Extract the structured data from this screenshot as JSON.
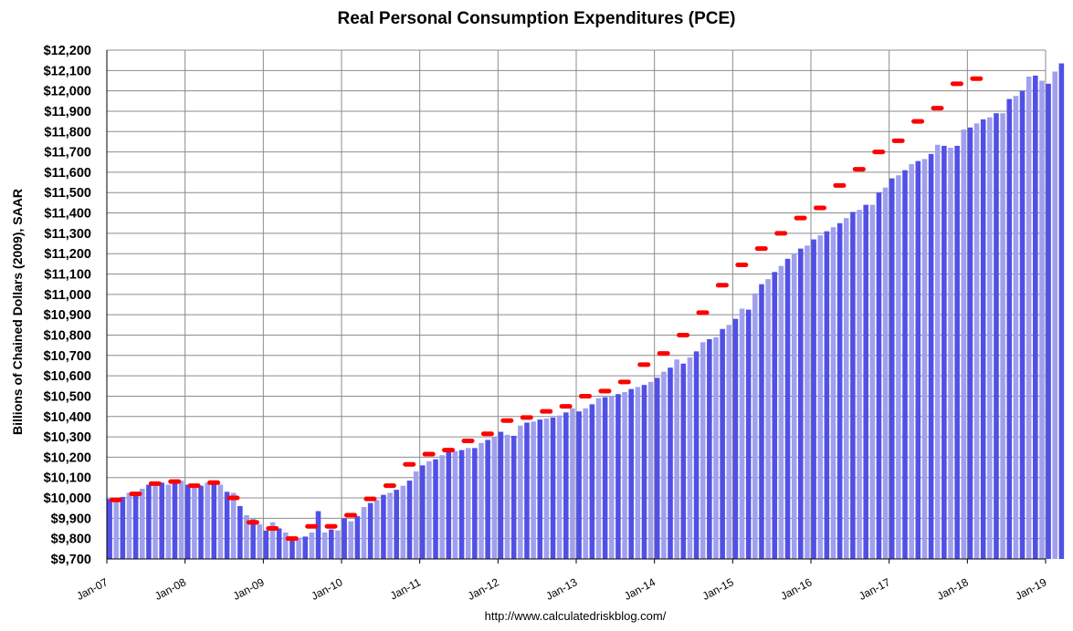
{
  "chart_data": {
    "type": "bar",
    "title": "Real Personal Consumption Expenditures (PCE)",
    "ylabel": "Billions of Chained Dollars (2009), SAAR",
    "xlabel": "",
    "source": "http://www.calculatedriskblog.com/",
    "ylim": [
      9700,
      12200
    ],
    "y_step": 100,
    "x_tick_labels": [
      "Jan-07",
      "Jan-08",
      "Jan-09",
      "Jan-10",
      "Jan-11",
      "Jan-12",
      "Jan-13",
      "Jan-14",
      "Jan-15",
      "Jan-16",
      "Jan-17",
      "Jan-18",
      "Jan-19"
    ],
    "x_start": "Jan-07",
    "x_end": "Jan-19",
    "grid": true,
    "colors": {
      "bar_even": "#5050e6",
      "bar_odd": "#a0a0ee",
      "quarterly_marker": "#ff0000",
      "grid": "#8c8c8c"
    },
    "series": [
      {
        "type": "bar",
        "frequency": "monthly",
        "values": [
          9995,
          9985,
          10005,
          10025,
          10020,
          10045,
          10065,
          10070,
          10075,
          10065,
          10080,
          10085,
          10065,
          10050,
          10060,
          10075,
          10080,
          10065,
          10030,
          10025,
          9960,
          9915,
          9895,
          9870,
          9840,
          9880,
          9850,
          9830,
          9810,
          9805,
          9810,
          9830,
          9935,
          9830,
          9845,
          9840,
          9900,
          9885,
          9910,
          9955,
          9975,
          9990,
          10015,
          10025,
          10040,
          10060,
          10085,
          10130,
          10160,
          10180,
          10190,
          10210,
          10225,
          10230,
          10235,
          10245,
          10245,
          10270,
          10285,
          10300,
          10325,
          10310,
          10305,
          10355,
          10370,
          10375,
          10385,
          10390,
          10395,
          10405,
          10420,
          10440,
          10425,
          10440,
          10460,
          10490,
          10495,
          10500,
          10510,
          10520,
          10535,
          10545,
          10555,
          10570,
          10590,
          10620,
          10640,
          10680,
          10660,
          10690,
          10720,
          10765,
          10780,
          10790,
          10830,
          10850,
          10880,
          10930,
          10925,
          11005,
          11050,
          11075,
          11110,
          11140,
          11175,
          11200,
          11225,
          11240,
          11270,
          11290,
          11310,
          11330,
          11350,
          11375,
          11405,
          11415,
          11440,
          11440,
          11500,
          11525,
          11570,
          11585,
          11610,
          11640,
          11655,
          11665,
          11690,
          11735,
          11730,
          11720,
          11730,
          11810,
          11820,
          11840,
          11860,
          11870,
          11890,
          11890,
          11960,
          11975,
          12000,
          12070,
          12075,
          12050,
          12035,
          12095,
          12135
        ]
      },
      {
        "type": "marker",
        "frequency": "quarterly",
        "values": [
          9990,
          10020,
          10070,
          10080,
          10060,
          10075,
          10000,
          9880,
          9850,
          9800,
          9860,
          9860,
          9915,
          9995,
          10060,
          10165,
          10215,
          10235,
          10280,
          10315,
          10380,
          10395,
          10425,
          10450,
          10500,
          10525,
          10570,
          10655,
          10710,
          10800,
          10910,
          11045,
          11145,
          11225,
          11300,
          11375,
          11425,
          11535,
          11615,
          11700,
          11755,
          11850,
          11915,
          12035,
          12060
        ]
      }
    ]
  }
}
